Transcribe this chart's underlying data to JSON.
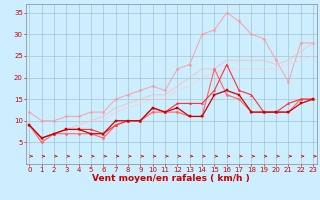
{
  "x": [
    0,
    1,
    2,
    3,
    4,
    5,
    6,
    7,
    8,
    9,
    10,
    11,
    12,
    13,
    14,
    15,
    16,
    17,
    18,
    19,
    20,
    21,
    22,
    23
  ],
  "series": [
    {
      "color": "#ff9999",
      "alpha": 0.9,
      "linewidth": 0.7,
      "marker": "D",
      "markersize": 1.5,
      "values": [
        12,
        10,
        10,
        11,
        11,
        12,
        12,
        15,
        16,
        17,
        18,
        17,
        22,
        23,
        30,
        31,
        35,
        33,
        30,
        29,
        24,
        19,
        28,
        28
      ]
    },
    {
      "color": "#ffbbbb",
      "alpha": 0.85,
      "linewidth": 0.7,
      "marker": null,
      "markersize": 0,
      "values": [
        9,
        6,
        7,
        8,
        9,
        10,
        11,
        13,
        14,
        15,
        16,
        16,
        18,
        20,
        22,
        22,
        24,
        24,
        24,
        24,
        23,
        24,
        26,
        28
      ]
    },
    {
      "color": "#ffcccc",
      "alpha": 0.8,
      "linewidth": 0.7,
      "marker": null,
      "markersize": 0,
      "values": [
        9,
        6,
        7,
        8,
        9,
        10,
        10,
        12,
        13,
        14,
        15,
        15,
        17,
        18,
        20,
        21,
        22,
        22,
        22,
        22,
        22,
        23,
        24,
        25
      ]
    },
    {
      "color": "#ff6666",
      "alpha": 1.0,
      "linewidth": 0.8,
      "marker": "D",
      "markersize": 1.5,
      "values": [
        9,
        5,
        7,
        7,
        7,
        7,
        6,
        9,
        10,
        10,
        12,
        12,
        12,
        11,
        11,
        22,
        16,
        15,
        12,
        12,
        12,
        12,
        15,
        15
      ]
    },
    {
      "color": "#ff3333",
      "alpha": 1.0,
      "linewidth": 0.8,
      "marker": "^",
      "markersize": 1.5,
      "values": [
        9,
        6,
        7,
        8,
        8,
        8,
        7,
        9,
        10,
        10,
        13,
        12,
        14,
        14,
        14,
        17,
        23,
        17,
        16,
        12,
        12,
        14,
        15,
        15
      ]
    },
    {
      "color": "#cc0000",
      "alpha": 1.0,
      "linewidth": 0.9,
      "marker": "s",
      "markersize": 1.5,
      "values": [
        9,
        6,
        7,
        8,
        8,
        7,
        7,
        10,
        10,
        10,
        13,
        12,
        13,
        11,
        11,
        16,
        17,
        16,
        12,
        12,
        12,
        12,
        14,
        15
      ]
    }
  ],
  "xlabel": "Vent moyen/en rafales ( km/h )",
  "xlabel_color": "#cc0000",
  "xlabel_fontsize": 6.5,
  "xlim": [
    -0.3,
    23.3
  ],
  "ylim": [
    0,
    37
  ],
  "yticks": [
    5,
    10,
    15,
    20,
    25,
    30,
    35
  ],
  "xticks": [
    0,
    1,
    2,
    3,
    4,
    5,
    6,
    7,
    8,
    9,
    10,
    11,
    12,
    13,
    14,
    15,
    16,
    17,
    18,
    19,
    20,
    21,
    22,
    23
  ],
  "background_color": "#cceeff",
  "grid_color": "#99bbcc",
  "tick_color": "#cc0000",
  "tick_fontsize": 5.0,
  "figsize": [
    3.2,
    2.0
  ],
  "dpi": 100
}
